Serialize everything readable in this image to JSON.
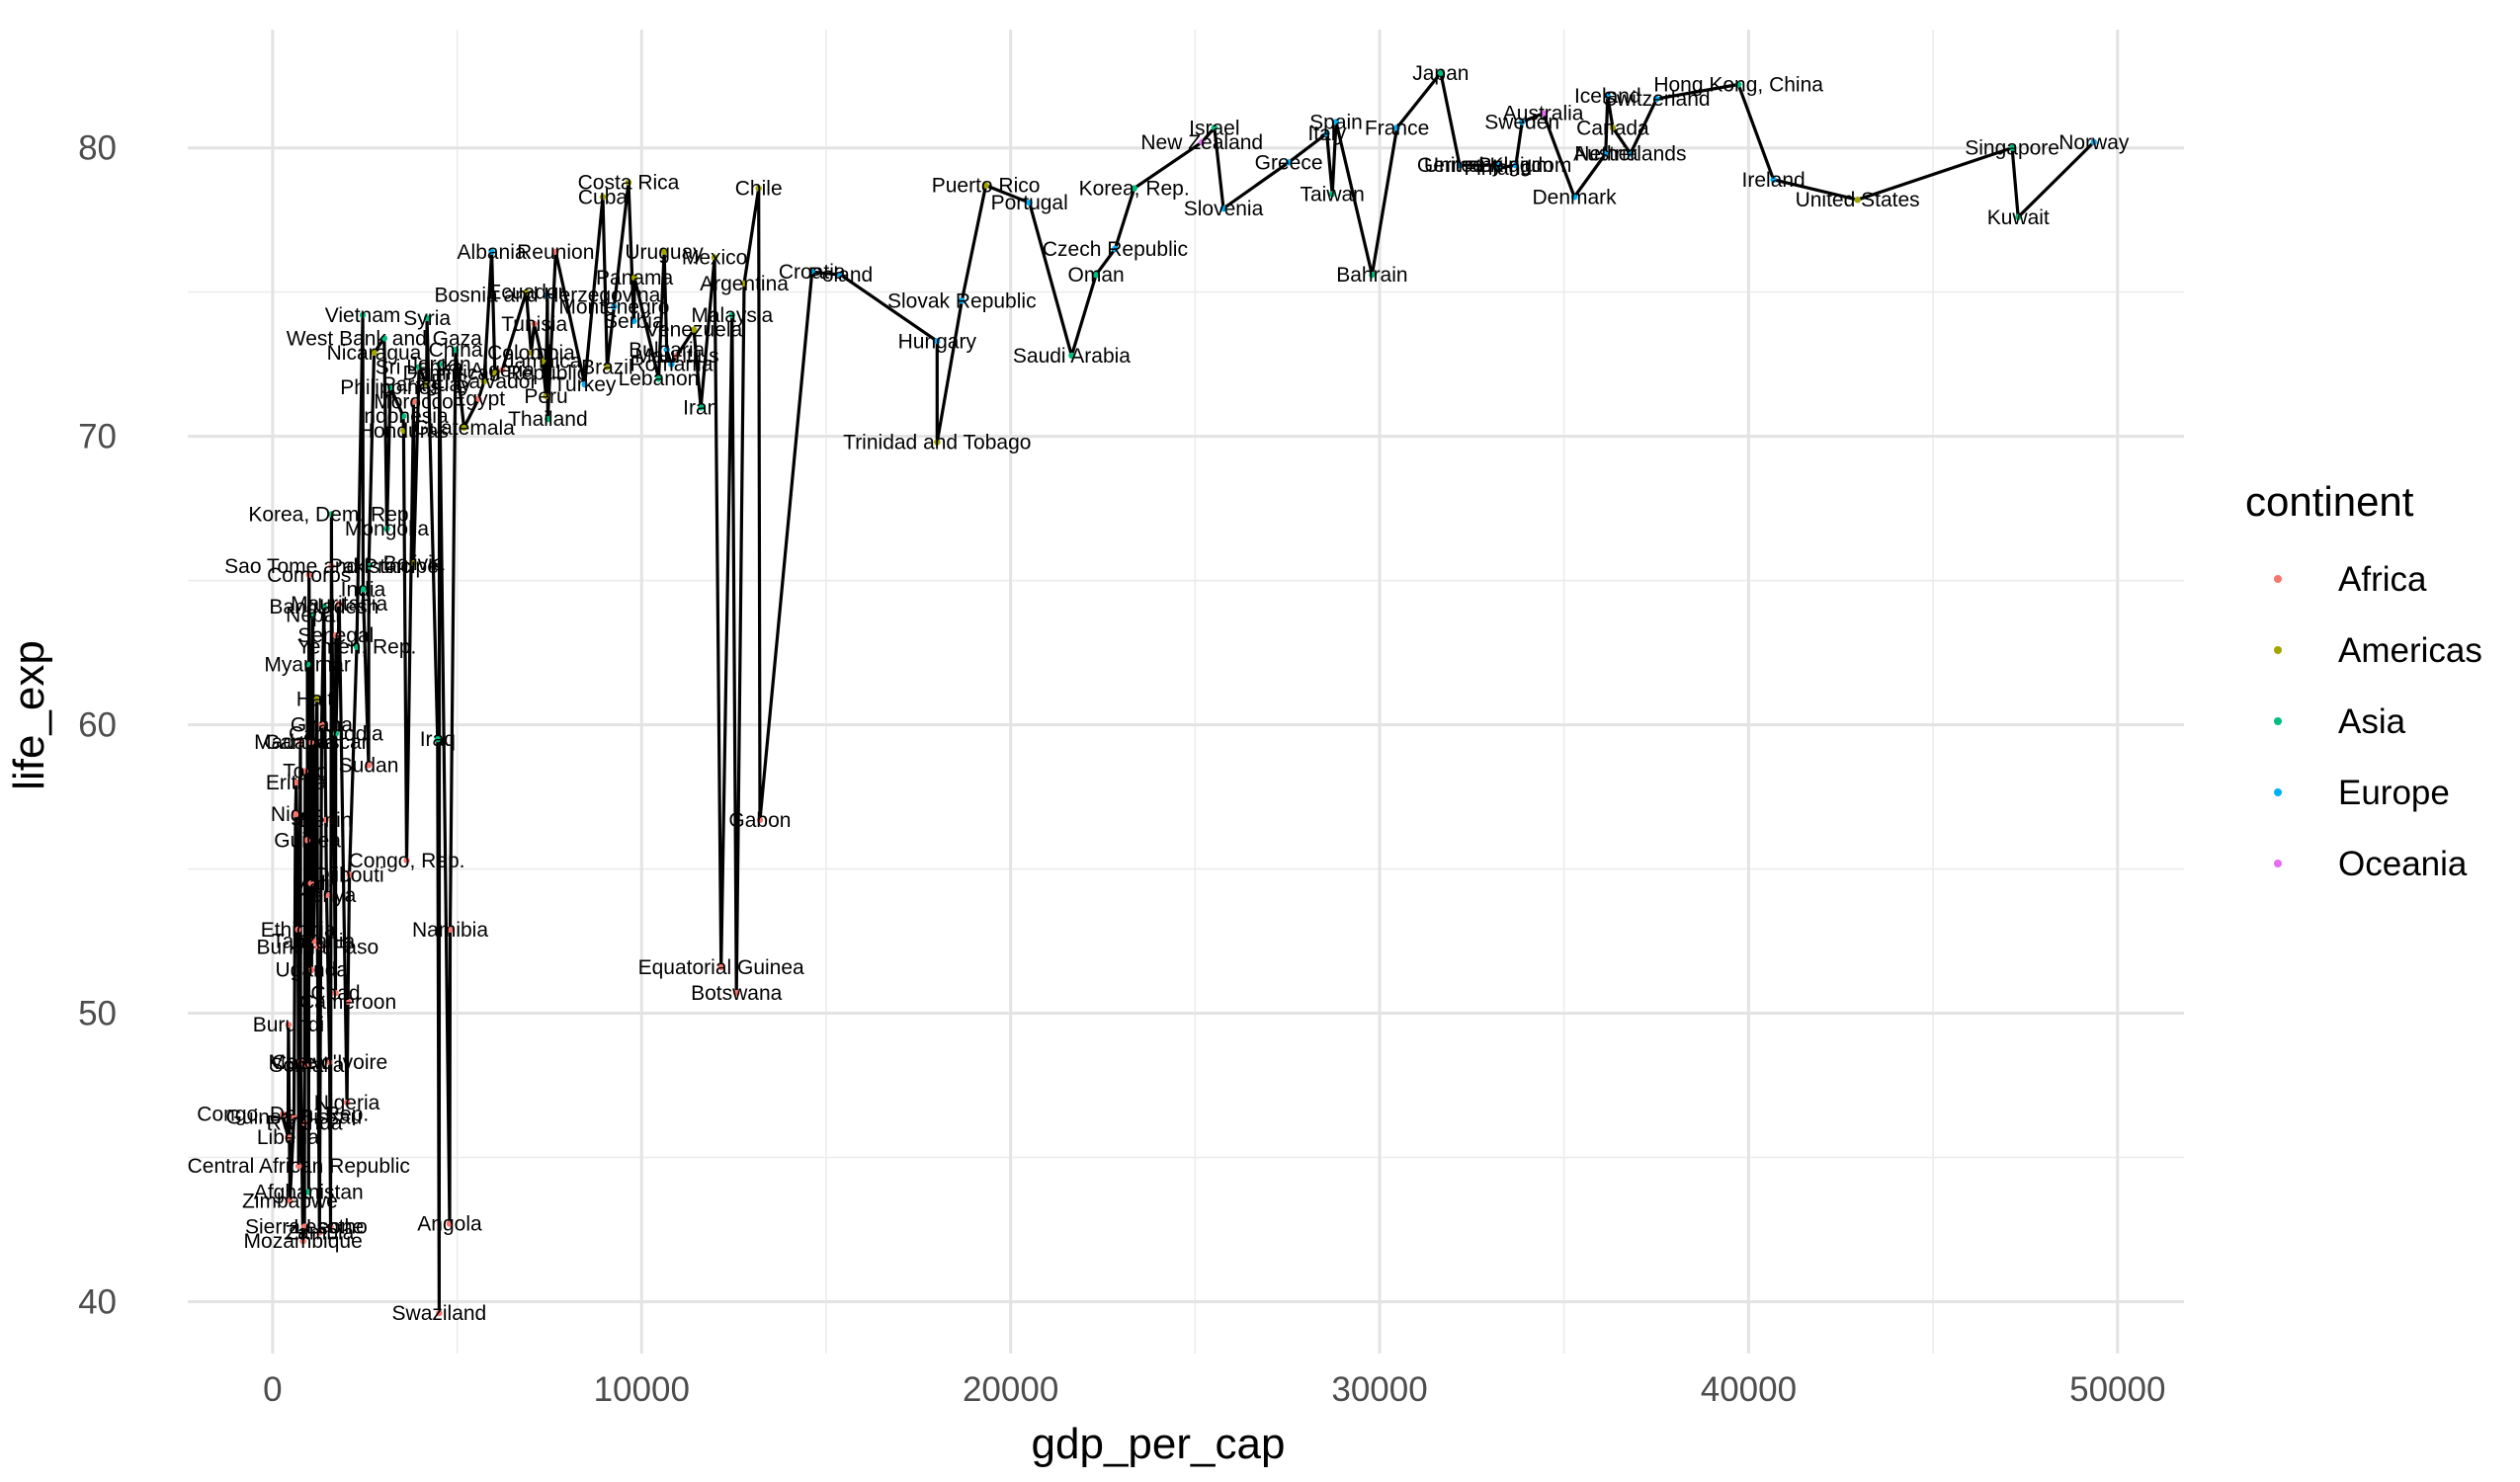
{
  "chart_data": {
    "type": "scatter",
    "xlabel": "gdp_per_cap",
    "ylabel": "life_exp",
    "xlim": [
      -2300,
      51800
    ],
    "ylim": [
      38.2,
      84.1
    ],
    "x_ticks": [
      0,
      10000,
      20000,
      30000,
      40000,
      50000
    ],
    "x_tick_labels": [
      "0",
      "10000",
      "20000",
      "30000",
      "40000",
      "50000"
    ],
    "y_ticks": [
      40,
      50,
      60,
      70,
      80
    ],
    "y_tick_labels": [
      "40",
      "50",
      "60",
      "70",
      "80"
    ],
    "grid": true,
    "connecting_line": true,
    "legend": {
      "title": "continent",
      "placement": "right",
      "entries": [
        {
          "name": "Africa",
          "color": "#F8766D"
        },
        {
          "name": "Americas",
          "color": "#A3A500"
        },
        {
          "name": "Asia",
          "color": "#00BF7D"
        },
        {
          "name": "Europe",
          "color": "#00B0F6"
        },
        {
          "name": "Oceania",
          "color": "#E76BF3"
        }
      ]
    },
    "points": [
      {
        "label": "Congo, Dem. Rep.",
        "x": 278,
        "y": 46.5,
        "continent": "Africa"
      },
      {
        "label": "Liberia",
        "x": 415,
        "y": 45.7,
        "continent": "Africa"
      },
      {
        "label": "Burundi",
        "x": 430,
        "y": 49.6,
        "continent": "Africa"
      },
      {
        "label": "Zimbabwe",
        "x": 470,
        "y": 43.5,
        "continent": "Africa"
      },
      {
        "label": "Guinea-Bissau",
        "x": 579,
        "y": 46.4,
        "continent": "Africa"
      },
      {
        "label": "Eritrea",
        "x": 641,
        "y": 58.0,
        "continent": "Africa"
      },
      {
        "label": "Ethiopia",
        "x": 690,
        "y": 52.9,
        "continent": "Africa"
      },
      {
        "label": "Central African Republic",
        "x": 706,
        "y": 44.7,
        "continent": "Africa"
      },
      {
        "label": "Niger",
        "x": 620,
        "y": 56.9,
        "continent": "Africa"
      },
      {
        "label": "Sierra Leone",
        "x": 863,
        "y": 42.6,
        "continent": "Africa"
      },
      {
        "label": "Somalia",
        "x": 926,
        "y": 48.2,
        "continent": "Africa"
      },
      {
        "label": "Malawi",
        "x": 759,
        "y": 48.3,
        "continent": "Africa"
      },
      {
        "label": "Mozambique",
        "x": 824,
        "y": 42.1,
        "continent": "Africa"
      },
      {
        "label": "Afghanistan",
        "x": 975,
        "y": 43.8,
        "continent": "Asia"
      },
      {
        "label": "Rwanda",
        "x": 863,
        "y": 46.2,
        "continent": "Africa"
      },
      {
        "label": "Gambia",
        "x": 753,
        "y": 59.4,
        "continent": "Africa"
      },
      {
        "label": "Guinea",
        "x": 943,
        "y": 56.0,
        "continent": "Africa"
      },
      {
        "label": "Uganda",
        "x": 1056,
        "y": 51.5,
        "continent": "Africa"
      },
      {
        "label": "Burkina Faso",
        "x": 1217,
        "y": 52.3,
        "continent": "Africa"
      },
      {
        "label": "Madagascar",
        "x": 1044,
        "y": 59.4,
        "continent": "Africa"
      },
      {
        "label": "Myanmar",
        "x": 944,
        "y": 62.1,
        "continent": "Asia"
      },
      {
        "label": "Mali",
        "x": 1042,
        "y": 54.5,
        "continent": "Africa"
      },
      {
        "label": "Togo",
        "x": 883,
        "y": 58.4,
        "continent": "Africa"
      },
      {
        "label": "Tanzania",
        "x": 1107,
        "y": 52.5,
        "continent": "Africa"
      },
      {
        "label": "Nepal",
        "x": 1091,
        "y": 63.8,
        "continent": "Asia"
      },
      {
        "label": "Comoros",
        "x": 986,
        "y": 65.2,
        "continent": "Africa"
      },
      {
        "label": "Bangladesh",
        "x": 1391,
        "y": 64.1,
        "continent": "Asia"
      },
      {
        "label": "Haiti",
        "x": 1202,
        "y": 60.9,
        "continent": "Americas"
      },
      {
        "label": "Benin",
        "x": 1441,
        "y": 56.7,
        "continent": "Africa"
      },
      {
        "label": "Kenya",
        "x": 1463,
        "y": 54.1,
        "continent": "Africa"
      },
      {
        "label": "Ghana",
        "x": 1328,
        "y": 60.0,
        "continent": "Africa"
      },
      {
        "label": "Zambia",
        "x": 1271,
        "y": 42.4,
        "continent": "Africa"
      },
      {
        "label": "Chad",
        "x": 1704,
        "y": 50.7,
        "continent": "Africa"
      },
      {
        "label": "Senegal",
        "x": 1712,
        "y": 63.1,
        "continent": "Africa"
      },
      {
        "label": "Lesotho",
        "x": 1569,
        "y": 42.6,
        "continent": "Africa"
      },
      {
        "label": "Cambodia",
        "x": 1714,
        "y": 59.7,
        "continent": "Asia"
      },
      {
        "label": "Korea, Dem. Rep.",
        "x": 1593,
        "y": 67.3,
        "continent": "Asia"
      },
      {
        "label": "Sao Tome and Principe",
        "x": 1598,
        "y": 65.5,
        "continent": "Africa"
      },
      {
        "label": "Nigeria",
        "x": 2014,
        "y": 46.9,
        "continent": "Africa"
      },
      {
        "label": "Mauritania",
        "x": 1803,
        "y": 64.2,
        "continent": "Africa"
      },
      {
        "label": "Cote d'Ivoire",
        "x": 1545,
        "y": 48.3,
        "continent": "Africa"
      },
      {
        "label": "Cameroon",
        "x": 2042,
        "y": 50.4,
        "continent": "Africa"
      },
      {
        "label": "Djibouti",
        "x": 2082,
        "y": 54.8,
        "continent": "Africa"
      },
      {
        "label": "Sudan",
        "x": 2602,
        "y": 58.6,
        "continent": "Africa"
      },
      {
        "label": "Pakistan",
        "x": 2606,
        "y": 65.5,
        "continent": "Asia"
      },
      {
        "label": "Yemen, Rep.",
        "x": 2281,
        "y": 62.7,
        "continent": "Asia"
      },
      {
        "label": "India",
        "x": 2452,
        "y": 64.7,
        "continent": "Asia"
      },
      {
        "label": "Mongolia",
        "x": 3096,
        "y": 66.8,
        "continent": "Asia"
      },
      {
        "label": "Vietnam",
        "x": 2442,
        "y": 74.2,
        "continent": "Asia"
      },
      {
        "label": "Nicaragua",
        "x": 2749,
        "y": 72.9,
        "continent": "Americas"
      },
      {
        "label": "Honduras",
        "x": 3548,
        "y": 70.2,
        "continent": "Americas"
      },
      {
        "label": "Bolivia",
        "x": 3822,
        "y": 65.6,
        "continent": "Americas"
      },
      {
        "label": "Philippines",
        "x": 3190,
        "y": 71.7,
        "continent": "Asia"
      },
      {
        "label": "Congo, Rep.",
        "x": 3633,
        "y": 55.3,
        "continent": "Africa"
      },
      {
        "label": "Iraq",
        "x": 4471,
        "y": 59.5,
        "continent": "Asia"
      },
      {
        "label": "West Bank and Gaza",
        "x": 3025,
        "y": 73.4,
        "continent": "Asia"
      },
      {
        "label": "Sri Lanka",
        "x": 3970,
        "y": 72.4,
        "continent": "Asia"
      },
      {
        "label": "Indonesia",
        "x": 3541,
        "y": 70.7,
        "continent": "Asia"
      },
      {
        "label": "Morocco",
        "x": 3820,
        "y": 71.2,
        "continent": "Africa"
      },
      {
        "label": "Paraguay",
        "x": 4173,
        "y": 71.8,
        "continent": "Americas"
      },
      {
        "label": "Syria",
        "x": 4185,
        "y": 74.1,
        "continent": "Asia"
      },
      {
        "label": "Guatemala",
        "x": 5186,
        "y": 70.3,
        "continent": "Americas"
      },
      {
        "label": "Swaziland",
        "x": 4513,
        "y": 39.6,
        "continent": "Africa"
      },
      {
        "label": "China",
        "x": 4959,
        "y": 73.0,
        "continent": "Asia"
      },
      {
        "label": "Egypt",
        "x": 5581,
        "y": 71.3,
        "continent": "Africa"
      },
      {
        "label": "Angola",
        "x": 4797,
        "y": 42.7,
        "continent": "Africa"
      },
      {
        "label": "Jordan",
        "x": 4519,
        "y": 72.5,
        "continent": "Asia"
      },
      {
        "label": "Namibia",
        "x": 4811,
        "y": 52.9,
        "continent": "Africa"
      },
      {
        "label": "El Salvador",
        "x": 5728,
        "y": 71.9,
        "continent": "Americas"
      },
      {
        "label": "Albania",
        "x": 5937,
        "y": 76.4,
        "continent": "Europe"
      },
      {
        "label": "Ecuador",
        "x": 6873,
        "y": 75.0,
        "continent": "Americas"
      },
      {
        "label": "Bosnia and Herzegovina",
        "x": 7446,
        "y": 74.9,
        "continent": "Europe"
      },
      {
        "label": "Peru",
        "x": 7409,
        "y": 71.4,
        "continent": "Americas"
      },
      {
        "label": "Tunisia",
        "x": 7093,
        "y": 73.9,
        "continent": "Africa"
      },
      {
        "label": "Colombia",
        "x": 7007,
        "y": 72.9,
        "continent": "Americas"
      },
      {
        "label": "Algeria",
        "x": 6223,
        "y": 72.3,
        "continent": "Africa"
      },
      {
        "label": "Dominican Republic",
        "x": 6025,
        "y": 72.2,
        "continent": "Americas"
      },
      {
        "label": "Thailand",
        "x": 7458,
        "y": 70.6,
        "continent": "Asia"
      },
      {
        "label": "Jamaica",
        "x": 7321,
        "y": 72.6,
        "continent": "Americas"
      },
      {
        "label": "Reunion",
        "x": 7670,
        "y": 76.4,
        "continent": "Africa"
      },
      {
        "label": "Brazil",
        "x": 9066,
        "y": 72.4,
        "continent": "Americas"
      },
      {
        "label": "Turkey",
        "x": 8458,
        "y": 71.8,
        "continent": "Europe"
      },
      {
        "label": "Iran",
        "x": 11606,
        "y": 71.0,
        "continent": "Asia"
      },
      {
        "label": "Montenegro",
        "x": 9254,
        "y": 74.5,
        "continent": "Europe"
      },
      {
        "label": "Serbia",
        "x": 9787,
        "y": 74.0,
        "continent": "Europe"
      },
      {
        "label": "Cuba",
        "x": 8948,
        "y": 78.3,
        "continent": "Americas"
      },
      {
        "label": "Costa Rica",
        "x": 9645,
        "y": 78.8,
        "continent": "Americas"
      },
      {
        "label": "Panama",
        "x": 9809,
        "y": 75.5,
        "continent": "Americas"
      },
      {
        "label": "Lebanon",
        "x": 10461,
        "y": 72.0,
        "continent": "Asia"
      },
      {
        "label": "Mauritius",
        "x": 10957,
        "y": 72.8,
        "continent": "Africa"
      },
      {
        "label": "Uruguay",
        "x": 10611,
        "y": 76.4,
        "continent": "Americas"
      },
      {
        "label": "Bulgaria",
        "x": 10681,
        "y": 73.0,
        "continent": "Europe"
      },
      {
        "label": "Romania",
        "x": 10808,
        "y": 72.5,
        "continent": "Europe"
      },
      {
        "label": "Venezuela",
        "x": 11416,
        "y": 73.7,
        "continent": "Americas"
      },
      {
        "label": "Mexico",
        "x": 11978,
        "y": 76.2,
        "continent": "Americas"
      },
      {
        "label": "Argentina",
        "x": 12779,
        "y": 75.3,
        "continent": "Americas"
      },
      {
        "label": "Malaysia",
        "x": 12452,
        "y": 74.2,
        "continent": "Asia"
      },
      {
        "label": "Equatorial Guinea",
        "x": 12154,
        "y": 51.6,
        "continent": "Africa"
      },
      {
        "label": "Botswana",
        "x": 12570,
        "y": 50.7,
        "continent": "Africa"
      },
      {
        "label": "Chile",
        "x": 13172,
        "y": 78.6,
        "continent": "Americas"
      },
      {
        "label": "Gabon",
        "x": 13206,
        "y": 56.7,
        "continent": "Africa"
      },
      {
        "label": "Croatia",
        "x": 14619,
        "y": 75.7,
        "continent": "Europe"
      },
      {
        "label": "Poland",
        "x": 15390,
        "y": 75.6,
        "continent": "Europe"
      },
      {
        "label": "Hungary",
        "x": 18009,
        "y": 73.3,
        "continent": "Europe"
      },
      {
        "label": "Trinidad and Tobago",
        "x": 18009,
        "y": 69.8,
        "continent": "Americas"
      },
      {
        "label": "Slovak Republic",
        "x": 18678,
        "y": 74.7,
        "continent": "Europe"
      },
      {
        "label": "Puerto Rico",
        "x": 19329,
        "y": 78.7,
        "continent": "Americas"
      },
      {
        "label": "Portugal",
        "x": 20510,
        "y": 78.1,
        "continent": "Europe"
      },
      {
        "label": "Saudi Arabia",
        "x": 21655,
        "y": 72.8,
        "continent": "Asia"
      },
      {
        "label": "Czech Republic",
        "x": 22833,
        "y": 76.5,
        "continent": "Europe"
      },
      {
        "label": "Oman",
        "x": 22316,
        "y": 75.6,
        "continent": "Asia"
      },
      {
        "label": "Korea, Rep.",
        "x": 23348,
        "y": 78.6,
        "continent": "Asia"
      },
      {
        "label": "New Zealand",
        "x": 25185,
        "y": 80.2,
        "continent": "Oceania"
      },
      {
        "label": "Slovenia",
        "x": 25768,
        "y": 77.9,
        "continent": "Europe"
      },
      {
        "label": "Israel",
        "x": 25523,
        "y": 80.7,
        "continent": "Asia"
      },
      {
        "label": "Greece",
        "x": 27538,
        "y": 79.5,
        "continent": "Europe"
      },
      {
        "label": "Taiwan",
        "x": 28718,
        "y": 78.4,
        "continent": "Asia"
      },
      {
        "label": "Spain",
        "x": 28821,
        "y": 80.9,
        "continent": "Europe"
      },
      {
        "label": "Italy",
        "x": 28570,
        "y": 80.5,
        "continent": "Europe"
      },
      {
        "label": "Bahrain",
        "x": 29796,
        "y": 75.6,
        "continent": "Asia"
      },
      {
        "label": "France",
        "x": 30470,
        "y": 80.7,
        "continent": "Europe"
      },
      {
        "label": "Japan",
        "x": 31656,
        "y": 82.6,
        "continent": "Asia"
      },
      {
        "label": "Germany",
        "x": 32170,
        "y": 79.4,
        "continent": "Europe"
      },
      {
        "label": "United Kingdom",
        "x": 33203,
        "y": 79.4,
        "continent": "Europe"
      },
      {
        "label": "Finland",
        "x": 33207,
        "y": 79.3,
        "continent": "Europe"
      },
      {
        "label": "Belgium",
        "x": 33692,
        "y": 79.4,
        "continent": "Europe"
      },
      {
        "label": "Sweden",
        "x": 33860,
        "y": 80.9,
        "continent": "Europe"
      },
      {
        "label": "Australia",
        "x": 34435,
        "y": 81.2,
        "continent": "Oceania"
      },
      {
        "label": "Denmark",
        "x": 35278,
        "y": 78.3,
        "continent": "Europe"
      },
      {
        "label": "Austria",
        "x": 36126,
        "y": 79.8,
        "continent": "Europe"
      },
      {
        "label": "Canada",
        "x": 36319,
        "y": 80.7,
        "continent": "Americas"
      },
      {
        "label": "Netherlands",
        "x": 36798,
        "y": 79.8,
        "continent": "Europe"
      },
      {
        "label": "Iceland",
        "x": 36181,
        "y": 81.8,
        "continent": "Europe"
      },
      {
        "label": "Switzerland",
        "x": 37506,
        "y": 81.7,
        "continent": "Europe"
      },
      {
        "label": "Hong Kong, China",
        "x": 39725,
        "y": 82.2,
        "continent": "Asia"
      },
      {
        "label": "Ireland",
        "x": 40676,
        "y": 78.9,
        "continent": "Europe"
      },
      {
        "label": "United States",
        "x": 42952,
        "y": 78.2,
        "continent": "Americas"
      },
      {
        "label": "Singapore",
        "x": 47143,
        "y": 80.0,
        "continent": "Asia"
      },
      {
        "label": "Kuwait",
        "x": 47307,
        "y": 77.6,
        "continent": "Asia"
      },
      {
        "label": "Norway",
        "x": 49357,
        "y": 80.2,
        "continent": "Europe"
      }
    ]
  }
}
